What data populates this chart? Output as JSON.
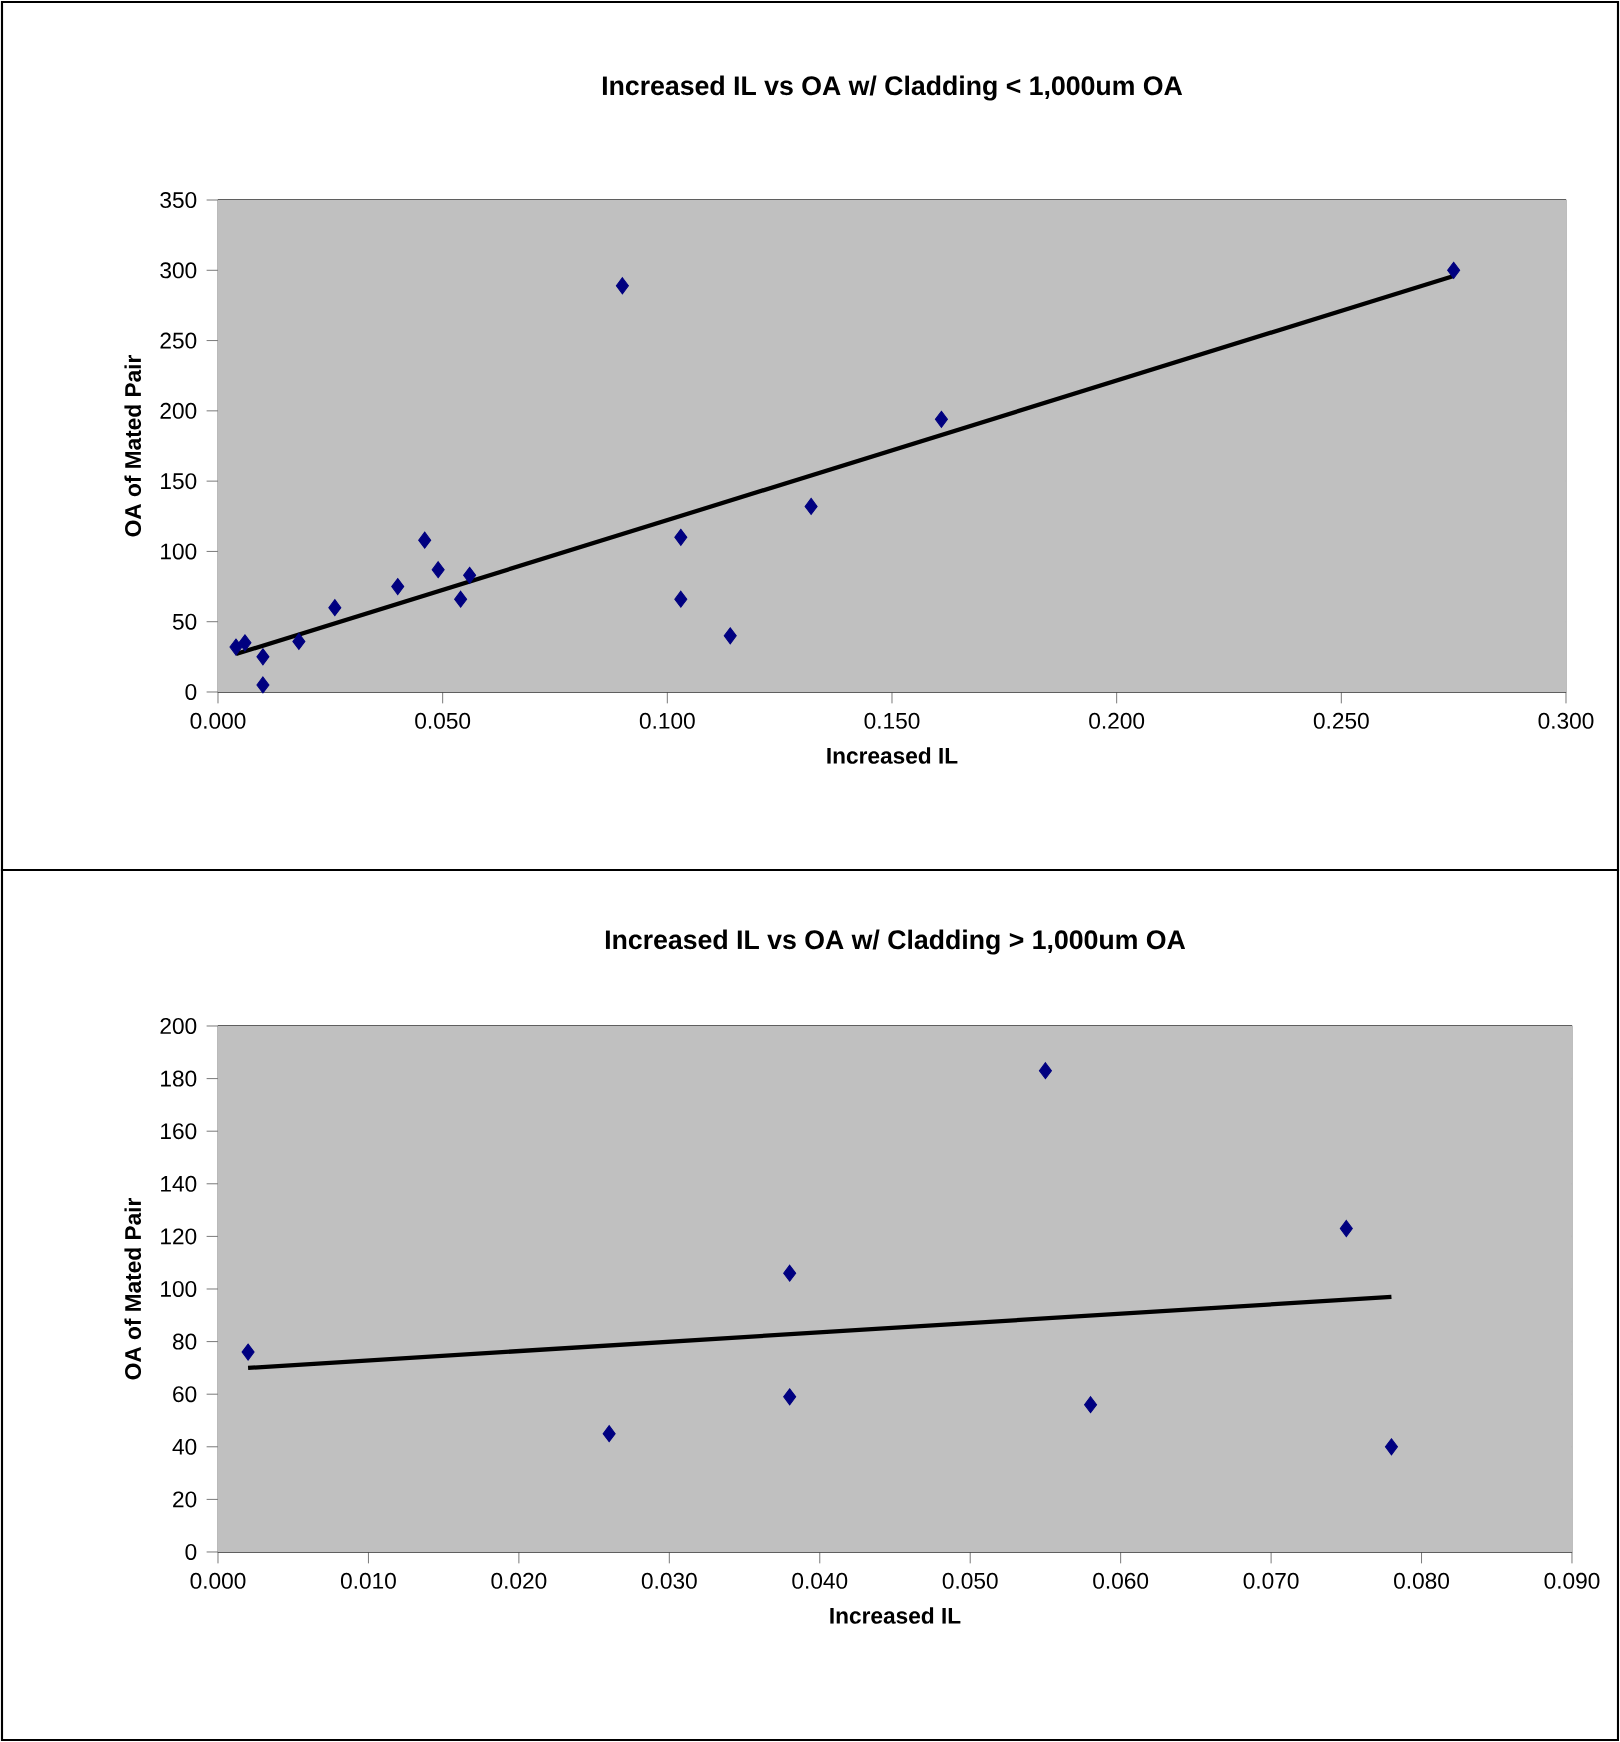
{
  "chart_data": [
    {
      "type": "scatter",
      "title": "Increased IL vs OA w/ Cladding < 1,000um OA",
      "xlabel": "Increased IL",
      "ylabel": "OA of Mated Pair",
      "marker": "diamond",
      "grid": "y",
      "xlim": [
        0,
        0.3
      ],
      "ylim": [
        0,
        350
      ],
      "xticks": [
        {
          "value": 0,
          "label": "0.000"
        },
        {
          "value": 0.05,
          "label": "0.050"
        },
        {
          "value": 0.1,
          "label": "0.100"
        },
        {
          "value": 0.15,
          "label": "0.150"
        },
        {
          "value": 0.2,
          "label": "0.200"
        },
        {
          "value": 0.25,
          "label": "0.250"
        },
        {
          "value": 0.3,
          "label": "0.300"
        }
      ],
      "yticks": [
        0,
        50,
        100,
        150,
        200,
        250,
        300,
        350
      ],
      "series": [
        {
          "type": "scatter",
          "color": "#000080",
          "x": [
            0.004,
            0.006,
            0.01,
            0.01,
            0.018,
            0.026,
            0.04,
            0.046,
            0.049,
            0.054,
            0.056,
            0.09,
            0.103,
            0.103,
            0.114,
            0.132,
            0.161,
            0.275
          ],
          "values": [
            32,
            35,
            25,
            5,
            36,
            60,
            75,
            108,
            87,
            66,
            83,
            289,
            110,
            66,
            40,
            132,
            194,
            300
          ]
        },
        {
          "type": "line",
          "color": "#000000",
          "marker": "none",
          "x": [
            0.004,
            0.275
          ],
          "values": [
            27,
            296
          ]
        }
      ]
    },
    {
      "type": "scatter",
      "title": "Increased IL vs OA w/ Cladding > 1,000um OA",
      "xlabel": "Increased IL",
      "ylabel": "OA of Mated Pair",
      "marker": "diamond",
      "grid": "y",
      "xlim": [
        0,
        0.09
      ],
      "ylim": [
        0,
        200
      ],
      "xticks": [
        {
          "value": 0,
          "label": "0.000"
        },
        {
          "value": 0.01,
          "label": "0.010"
        },
        {
          "value": 0.02,
          "label": "0.020"
        },
        {
          "value": 0.03,
          "label": "0.030"
        },
        {
          "value": 0.04,
          "label": "0.040"
        },
        {
          "value": 0.05,
          "label": "0.050"
        },
        {
          "value": 0.06,
          "label": "0.060"
        },
        {
          "value": 0.07,
          "label": "0.070"
        },
        {
          "value": 0.08,
          "label": "0.080"
        },
        {
          "value": 0.09,
          "label": "0.090"
        }
      ],
      "yticks": [
        0,
        20,
        40,
        60,
        80,
        100,
        120,
        140,
        160,
        180,
        200
      ],
      "series": [
        {
          "type": "scatter",
          "color": "#000080",
          "x": [
            0.002,
            0.026,
            0.038,
            0.038,
            0.055,
            0.058,
            0.075,
            0.078
          ],
          "values": [
            76,
            45,
            106,
            59,
            183,
            56,
            123,
            40
          ]
        },
        {
          "type": "line",
          "color": "#000000",
          "marker": "none",
          "x": [
            0.002,
            0.078
          ],
          "values": [
            70,
            97
          ]
        }
      ]
    }
  ]
}
